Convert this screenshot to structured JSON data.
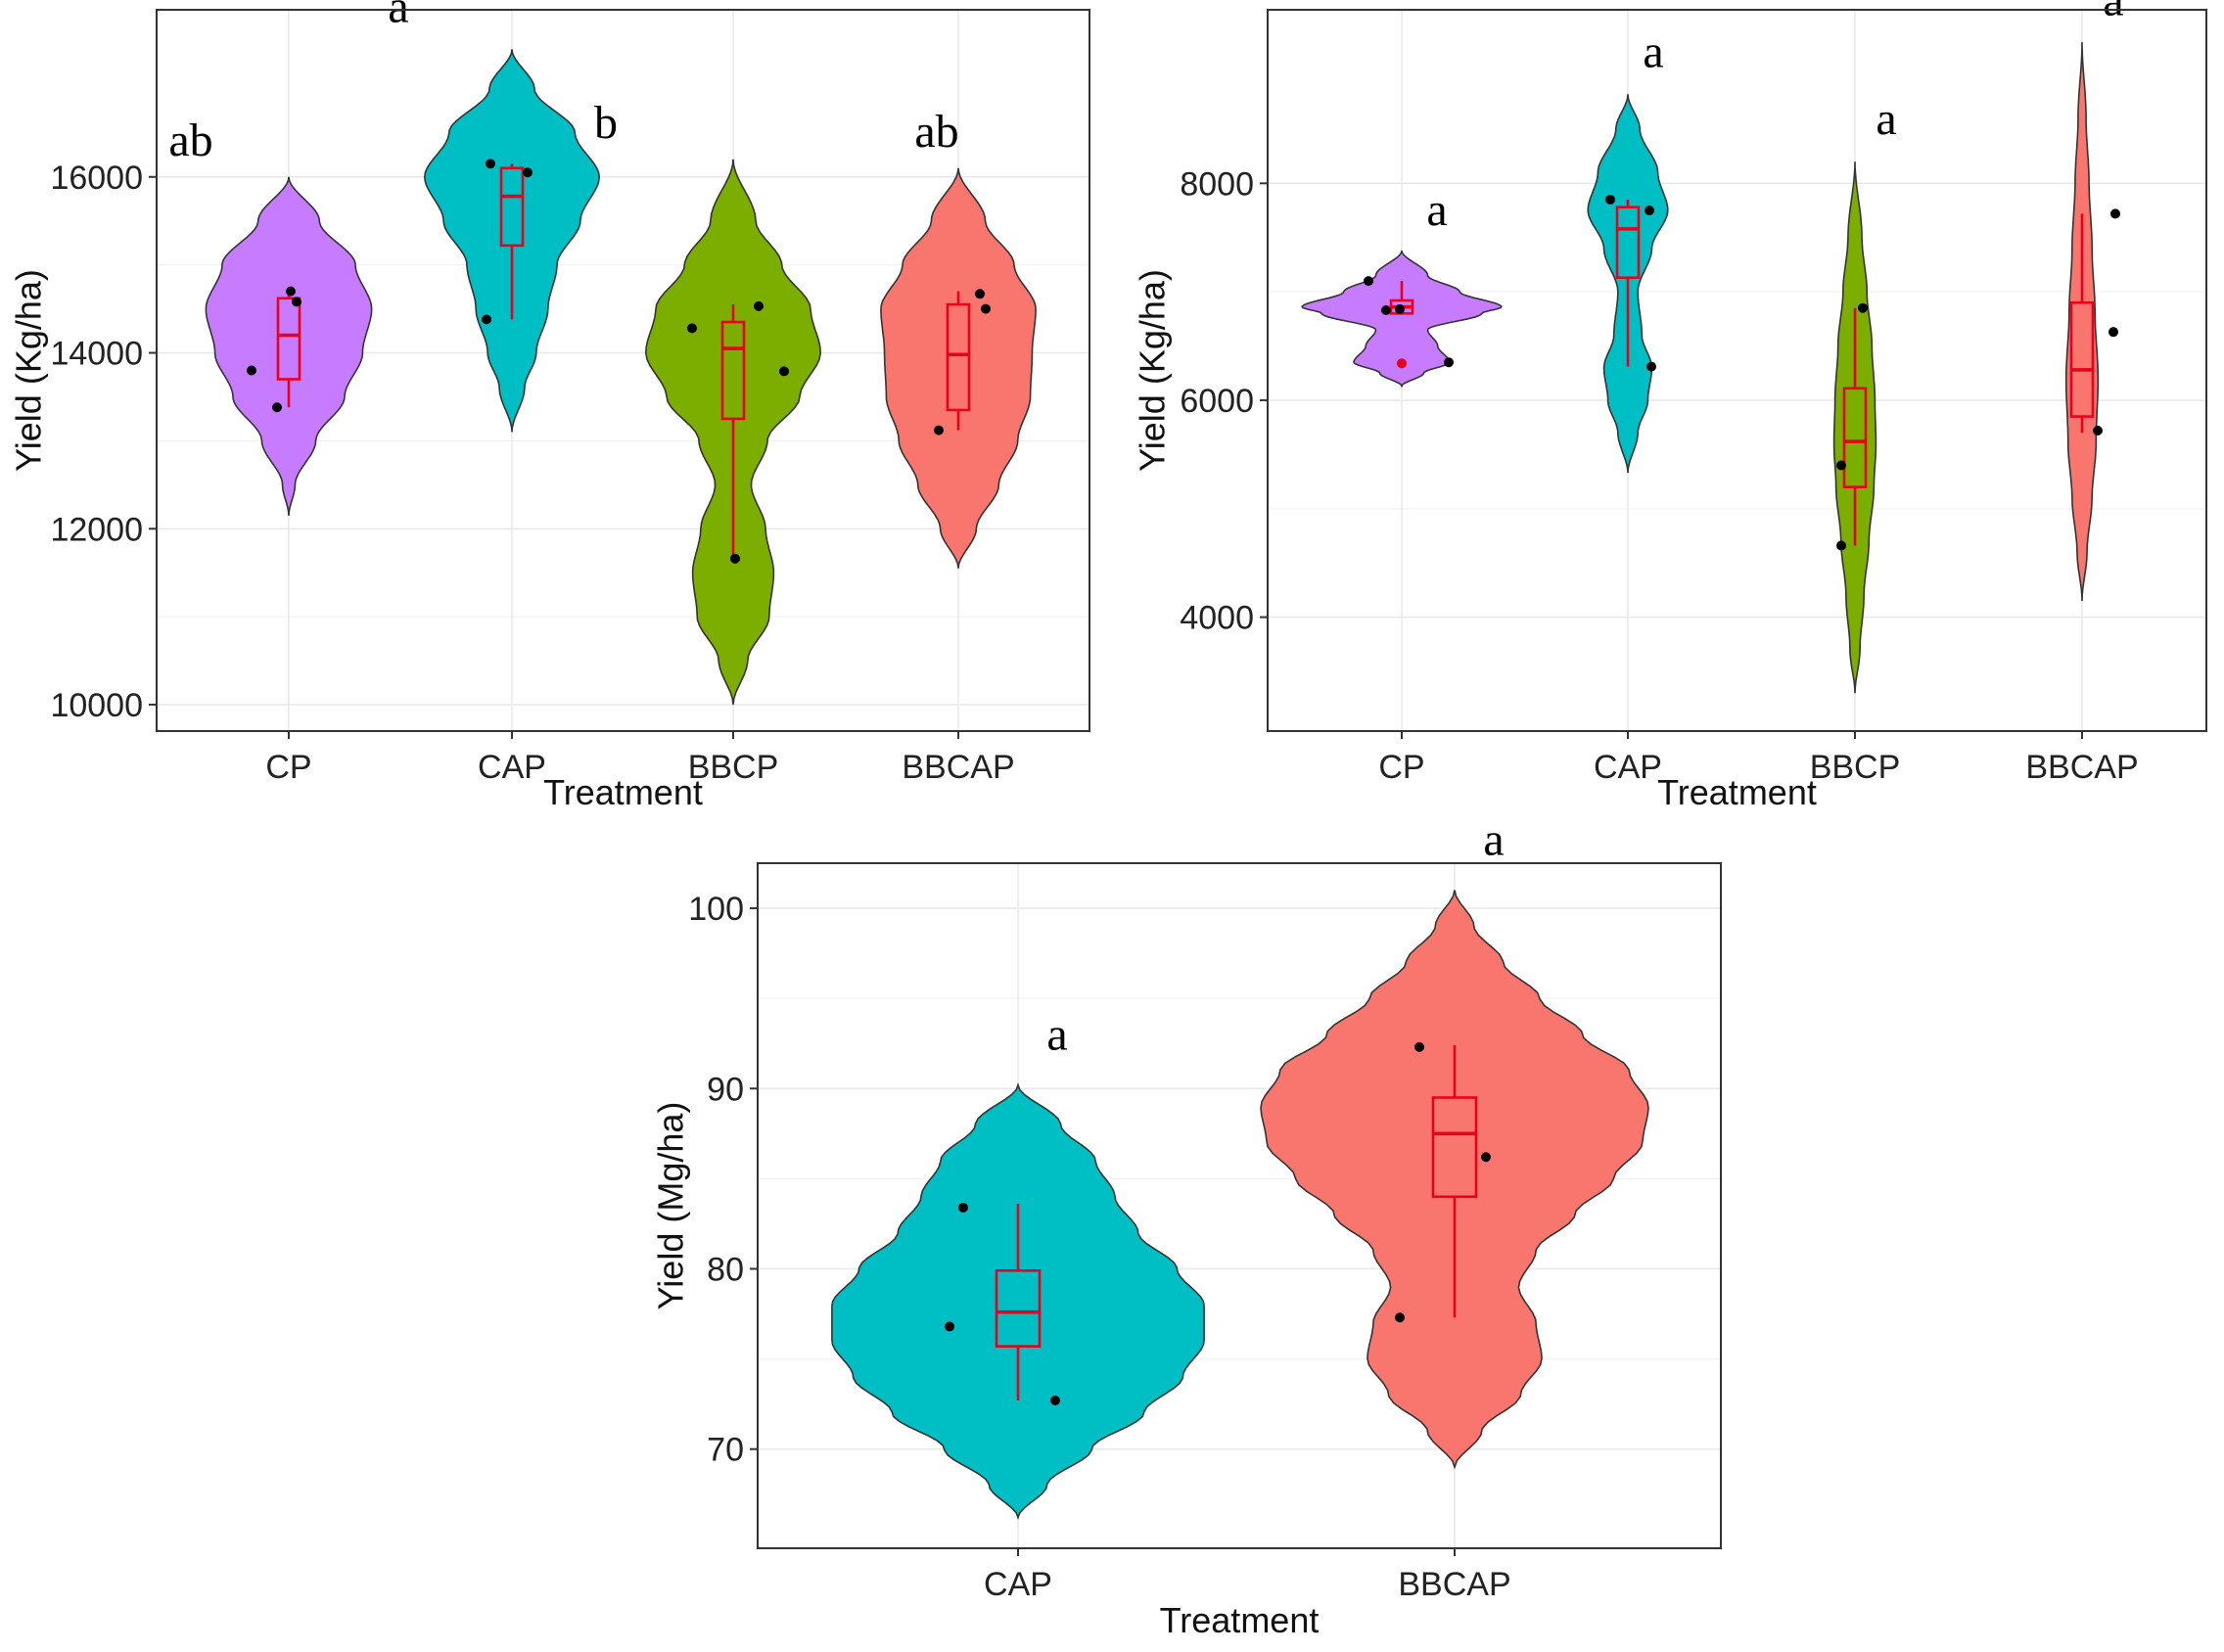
{
  "colors": {
    "CP": "#c77cff",
    "CAP": "#00bfc4",
    "BBCP": "#7cae00",
    "BBCAP": "#f8766d",
    "box": "#e8001c",
    "point": "#000000"
  },
  "chart_data": [
    {
      "type": "violin",
      "id": "panel-a",
      "xlabel": "Treatment",
      "ylabel": "Yield (Kg/ha)",
      "categories": [
        "CP",
        "CAP",
        "BBCP",
        "BBCAP"
      ],
      "ylim": [
        9700,
        17900
      ],
      "yticks": [
        10000,
        12000,
        14000,
        16000
      ],
      "ytick_labels": [
        "10000",
        "12000",
        "14000",
        "16000"
      ],
      "grid": true,
      "groups": [
        {
          "name": "CP",
          "letter": "ab",
          "points": [
            13800,
            14580,
            14700,
            13380
          ],
          "box": {
            "min": 13380,
            "q1": 13700,
            "median": 14200,
            "q3": 14620,
            "max": 14700
          },
          "violin": {
            "ymin": 12150,
            "ymax": 16000,
            "profile": [
              [
                12150,
                0.0
              ],
              [
                12500,
                0.07
              ],
              [
                13000,
                0.3
              ],
              [
                13500,
                0.62
              ],
              [
                14000,
                0.82
              ],
              [
                14500,
                0.92
              ],
              [
                15000,
                0.74
              ],
              [
                15500,
                0.34
              ],
              [
                16000,
                0.0
              ]
            ]
          }
        },
        {
          "name": "CAP",
          "letter": "a",
          "points": [
            16150,
            16050,
            14380
          ],
          "box": {
            "min": 14380,
            "q1": 15220,
            "median": 15780,
            "q3": 16100,
            "max": 16150
          },
          "violin": {
            "ymin": 13100,
            "ymax": 17450,
            "profile": [
              [
                13100,
                0.0
              ],
              [
                13600,
                0.14
              ],
              [
                14000,
                0.27
              ],
              [
                14500,
                0.4
              ],
              [
                15000,
                0.5
              ],
              [
                15500,
                0.76
              ],
              [
                16000,
                0.97
              ],
              [
                16500,
                0.7
              ],
              [
                17000,
                0.25
              ],
              [
                17450,
                0.0
              ]
            ]
          }
        },
        {
          "name": "BBCP",
          "letter": "b",
          "points": [
            14280,
            14530,
            13790,
            11660
          ],
          "box": {
            "min": 11660,
            "q1": 13250,
            "median": 14050,
            "q3": 14350,
            "max": 14550
          },
          "violin": {
            "ymin": 10000,
            "ymax": 16200,
            "profile": [
              [
                10000,
                0.0
              ],
              [
                10500,
                0.16
              ],
              [
                11000,
                0.4
              ],
              [
                11500,
                0.45
              ],
              [
                12000,
                0.36
              ],
              [
                12500,
                0.2
              ],
              [
                13000,
                0.38
              ],
              [
                13500,
                0.74
              ],
              [
                14000,
                0.97
              ],
              [
                14500,
                0.86
              ],
              [
                15000,
                0.54
              ],
              [
                15500,
                0.25
              ],
              [
                16200,
                0.0
              ]
            ]
          }
        },
        {
          "name": "BBCAP",
          "letter": "ab",
          "points": [
            14670,
            14500,
            13120
          ],
          "box": {
            "min": 13120,
            "q1": 13350,
            "median": 13980,
            "q3": 14550,
            "max": 14700
          },
          "violin": {
            "ymin": 11550,
            "ymax": 16100,
            "profile": [
              [
                11550,
                0.0
              ],
              [
                12000,
                0.2
              ],
              [
                12500,
                0.45
              ],
              [
                13000,
                0.66
              ],
              [
                13500,
                0.8
              ],
              [
                14000,
                0.82
              ],
              [
                14500,
                0.86
              ],
              [
                15000,
                0.62
              ],
              [
                15500,
                0.3
              ],
              [
                16100,
                0.0
              ]
            ]
          }
        }
      ]
    },
    {
      "type": "violin",
      "id": "panel-b",
      "xlabel": "Treatment",
      "ylabel": "Yield (Kg/ha)",
      "categories": [
        "CP",
        "CAP",
        "BBCP",
        "BBCAP"
      ],
      "ylim": [
        2950,
        9600
      ],
      "yticks": [
        4000,
        6000,
        8000
      ],
      "ytick_labels": [
        "4000",
        "6000",
        "8000"
      ],
      "grid": true,
      "groups": [
        {
          "name": "CP",
          "letter": "a",
          "points": [
            7100,
            6830,
            6840,
            6350
          ],
          "outliers": [
            6340
          ],
          "box": {
            "min": 6800,
            "q1": 6800,
            "median": 6860,
            "q3": 6920,
            "max": 7100
          },
          "violin": {
            "ymin": 6130,
            "ymax": 7380,
            "profile": [
              [
                6130,
                0.0
              ],
              [
                6250,
                0.22
              ],
              [
                6350,
                0.48
              ],
              [
                6500,
                0.36
              ],
              [
                6650,
                0.26
              ],
              [
                6800,
                0.8
              ],
              [
                6860,
                1.0
              ],
              [
                7000,
                0.58
              ],
              [
                7150,
                0.26
              ],
              [
                7380,
                0.0
              ]
            ]
          }
        },
        {
          "name": "CAP",
          "letter": "a",
          "points": [
            7850,
            7750,
            6310
          ],
          "box": {
            "min": 6310,
            "q1": 7130,
            "median": 7580,
            "q3": 7780,
            "max": 7850
          },
          "violin": {
            "ymin": 5330,
            "ymax": 8820,
            "profile": [
              [
                5330,
                0.0
              ],
              [
                5700,
                0.1
              ],
              [
                6000,
                0.2
              ],
              [
                6300,
                0.24
              ],
              [
                6600,
                0.14
              ],
              [
                7000,
                0.1
              ],
              [
                7400,
                0.24
              ],
              [
                7750,
                0.4
              ],
              [
                8100,
                0.3
              ],
              [
                8500,
                0.12
              ],
              [
                8820,
                0.0
              ]
            ]
          }
        },
        {
          "name": "BBCP",
          "letter": "a",
          "points": [
            6850,
            5400,
            4660
          ],
          "box": {
            "min": 4660,
            "q1": 5200,
            "median": 5620,
            "q3": 6110,
            "max": 6850
          },
          "violin": {
            "ymin": 3300,
            "ymax": 8200,
            "profile": [
              [
                3300,
                0.0
              ],
              [
                3700,
                0.05
              ],
              [
                4200,
                0.09
              ],
              [
                4700,
                0.14
              ],
              [
                5200,
                0.19
              ],
              [
                5600,
                0.21
              ],
              [
                6000,
                0.2
              ],
              [
                6500,
                0.17
              ],
              [
                7000,
                0.12
              ],
              [
                7500,
                0.07
              ],
              [
                8200,
                0.0
              ]
            ]
          }
        },
        {
          "name": "BBCAP",
          "letter": "a",
          "points": [
            7720,
            6630,
            5720
          ],
          "box": {
            "min": 5700,
            "q1": 5850,
            "median": 6280,
            "q3": 6900,
            "max": 7720
          },
          "violin": {
            "ymin": 4150,
            "ymax": 9300,
            "profile": [
              [
                4150,
                0.0
              ],
              [
                4600,
                0.05
              ],
              [
                5100,
                0.1
              ],
              [
                5600,
                0.14
              ],
              [
                6200,
                0.16
              ],
              [
                6800,
                0.13
              ],
              [
                7400,
                0.1
              ],
              [
                8000,
                0.07
              ],
              [
                8600,
                0.04
              ],
              [
                9300,
                0.0
              ]
            ]
          }
        }
      ]
    },
    {
      "type": "violin",
      "id": "panel-c",
      "xlabel": "Treatment",
      "ylabel": "Yield (Mg/ha)",
      "categories": [
        "CAP",
        "BBCAP"
      ],
      "ylim": [
        64.5,
        102.5
      ],
      "yticks": [
        70,
        80,
        90,
        100
      ],
      "ytick_labels": [
        "70",
        "80",
        "90",
        "100"
      ],
      "grid": true,
      "groups": [
        {
          "name": "CAP",
          "letter": "a",
          "points": [
            83.4,
            76.8,
            72.7
          ],
          "box": {
            "min": 72.7,
            "q1": 75.7,
            "median": 77.6,
            "q3": 79.9,
            "max": 83.6
          },
          "violin": {
            "ymin": 66.2,
            "ymax": 90.2,
            "profile": [
              [
                66.2,
                0.0
              ],
              [
                68,
                0.15
              ],
              [
                70,
                0.38
              ],
              [
                72,
                0.65
              ],
              [
                74,
                0.85
              ],
              [
                76,
                0.96
              ],
              [
                78,
                0.96
              ],
              [
                80,
                0.82
              ],
              [
                82,
                0.62
              ],
              [
                84,
                0.5
              ],
              [
                86,
                0.4
              ],
              [
                88,
                0.22
              ],
              [
                90.2,
                0.0
              ]
            ]
          }
        },
        {
          "name": "BBCAP",
          "letter": "a",
          "points": [
            92.3,
            86.2,
            77.3
          ],
          "box": {
            "min": 77.3,
            "q1": 84.0,
            "median": 87.5,
            "q3": 89.5,
            "max": 92.4
          },
          "violin": {
            "ymin": 69.0,
            "ymax": 101.0,
            "profile": [
              [
                69,
                0.0
              ],
              [
                71,
                0.14
              ],
              [
                73,
                0.34
              ],
              [
                75,
                0.45
              ],
              [
                77,
                0.42
              ],
              [
                79,
                0.33
              ],
              [
                81,
                0.42
              ],
              [
                83,
                0.62
              ],
              [
                85,
                0.82
              ],
              [
                87,
                0.97
              ],
              [
                89,
                1.0
              ],
              [
                91,
                0.9
              ],
              [
                93,
                0.66
              ],
              [
                95,
                0.44
              ],
              [
                97,
                0.25
              ],
              [
                99,
                0.1
              ],
              [
                101,
                0.0
              ]
            ]
          }
        }
      ]
    }
  ]
}
